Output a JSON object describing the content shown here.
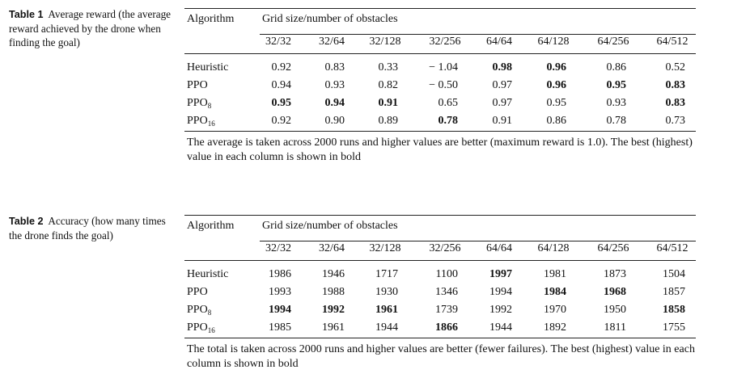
{
  "tables": [
    {
      "label": "Table 1",
      "caption": "Average reward (the average reward achieved by the drone when finding the goal)",
      "algorithm_header": "Algorithm",
      "group_header": "Grid size/number of obstacles",
      "columns": [
        "32/32",
        "32/64",
        "32/128",
        "32/256",
        "64/64",
        "64/128",
        "64/256",
        "64/512"
      ],
      "rows": [
        {
          "name": "Heuristic",
          "sub": "",
          "values": [
            "0.92",
            "0.83",
            "0.33",
            "− 1.04",
            "0.98",
            "0.96",
            "0.86",
            "0.52"
          ],
          "bold": [
            false,
            false,
            false,
            false,
            true,
            true,
            false,
            false
          ]
        },
        {
          "name": "PPO",
          "sub": "",
          "values": [
            "0.94",
            "0.93",
            "0.82",
            "− 0.50",
            "0.97",
            "0.96",
            "0.95",
            "0.83"
          ],
          "bold": [
            false,
            false,
            false,
            false,
            false,
            true,
            true,
            true
          ]
        },
        {
          "name": "PPO",
          "sub": "8",
          "values": [
            "0.95",
            "0.94",
            "0.91",
            "0.65",
            "0.97",
            "0.95",
            "0.93",
            "0.83"
          ],
          "bold": [
            true,
            true,
            true,
            false,
            false,
            false,
            false,
            true
          ]
        },
        {
          "name": "PPO",
          "sub": "16",
          "values": [
            "0.92",
            "0.90",
            "0.89",
            "0.78",
            "0.91",
            "0.86",
            "0.78",
            "0.73"
          ],
          "bold": [
            false,
            false,
            false,
            true,
            false,
            false,
            false,
            false
          ]
        }
      ],
      "footnote": "The average is taken across 2000 runs and higher values are better (maximum reward is 1.0). The best (highest) value in each column is shown in bold"
    },
    {
      "label": "Table 2",
      "caption": "Accuracy (how many times the drone finds the goal)",
      "algorithm_header": "Algorithm",
      "group_header": "Grid size/number of obstacles",
      "columns": [
        "32/32",
        "32/64",
        "32/128",
        "32/256",
        "64/64",
        "64/128",
        "64/256",
        "64/512"
      ],
      "rows": [
        {
          "name": "Heuristic",
          "sub": "",
          "values": [
            "1986",
            "1946",
            "1717",
            "1100",
            "1997",
            "1981",
            "1873",
            "1504"
          ],
          "bold": [
            false,
            false,
            false,
            false,
            true,
            false,
            false,
            false
          ]
        },
        {
          "name": "PPO",
          "sub": "",
          "values": [
            "1993",
            "1988",
            "1930",
            "1346",
            "1994",
            "1984",
            "1968",
            "1857"
          ],
          "bold": [
            false,
            false,
            false,
            false,
            false,
            true,
            true,
            false
          ]
        },
        {
          "name": "PPO",
          "sub": "8",
          "values": [
            "1994",
            "1992",
            "1961",
            "1739",
            "1992",
            "1970",
            "1950",
            "1858"
          ],
          "bold": [
            true,
            true,
            true,
            false,
            false,
            false,
            false,
            true
          ]
        },
        {
          "name": "PPO",
          "sub": "16",
          "values": [
            "1985",
            "1961",
            "1944",
            "1866",
            "1944",
            "1892",
            "1811",
            "1755"
          ],
          "bold": [
            false,
            false,
            false,
            true,
            false,
            false,
            false,
            false
          ]
        }
      ],
      "footnote": "The total is taken across 2000 runs and higher values are better (fewer failures). The best (highest) value in each column is shown in bold"
    }
  ]
}
